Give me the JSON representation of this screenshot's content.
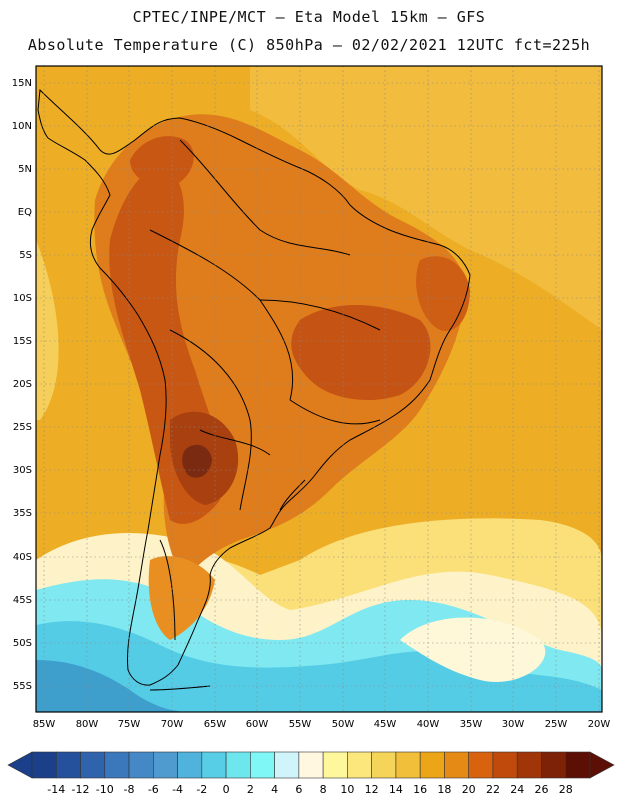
{
  "title_line1": "CPTEC/INPE/MCT –  Eta Model 15km – GFS",
  "title_line2": "Absolute Temperature (C) 850hPa – 02/02/2021 12UTC fct=225h",
  "lat_labels": [
    "15N",
    "10N",
    "5N",
    "EQ",
    "5S",
    "10S",
    "15S",
    "20S",
    "25S",
    "30S",
    "35S",
    "40S",
    "45S",
    "50S",
    "55S"
  ],
  "lon_labels": [
    "85W",
    "80W",
    "75W",
    "70W",
    "65W",
    "60W",
    "55W",
    "50W",
    "45W",
    "40W",
    "35W",
    "30W",
    "25W",
    "20W"
  ],
  "colorbar": {
    "labels": [
      "-14",
      "-12",
      "-10",
      "-8",
      "-6",
      "-4",
      "-2",
      "0",
      "2",
      "4",
      "6",
      "8",
      "10",
      "12",
      "14",
      "16",
      "18",
      "20",
      "22",
      "24",
      "26",
      "28"
    ],
    "colors": [
      "#1c3f8a",
      "#25519c",
      "#2f64ad",
      "#3a78bb",
      "#4488c6",
      "#4f9bd0",
      "#4fb3dc",
      "#57cde6",
      "#6ee6ee",
      "#7ff7f7",
      "#cff5fb",
      "#fff7e0",
      "#fff79c",
      "#fbe77c",
      "#f5d45a",
      "#f1bf3a",
      "#eda518",
      "#e58a14",
      "#d9620f",
      "#c04a0c",
      "#a03509",
      "#7e2207",
      "#5c1005"
    ]
  },
  "colors": {
    "background_field": "#edae26",
    "ocean_north": "#f1bb3c",
    "warm": "#d5691a",
    "hot": "#bd4e12",
    "hottest": "#7a2a10",
    "cool": "#fdeea0",
    "cold": "#55cce6",
    "colder": "#42a7d0"
  }
}
